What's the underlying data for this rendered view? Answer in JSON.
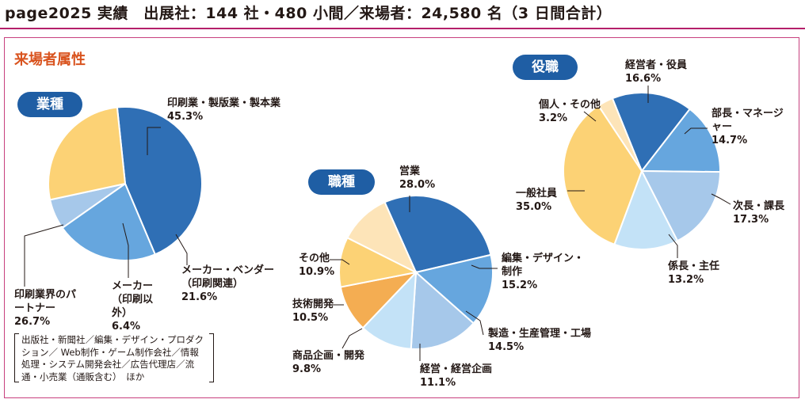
{
  "title": "page2025 実績　出展社：144 社・480 小間／来場者：24,580 名（3 日間合計）",
  "section_heading": "来場者属性",
  "note": "出版社・新聞社／編集・デザイン・プロダクション／ Web制作・ゲーム制作会社／情報処理・システム開発会社／広告代理店／流通・小売業（通販含む）　ほか",
  "colors": {
    "accent_rule": "#b4206a",
    "section_heading": "#d9531e",
    "pill": "#1f5ea4"
  },
  "chart_data": [
    {
      "type": "pie",
      "title": "業種",
      "slices": [
        {
          "label": "印刷業・製版業・製本業",
          "value": 45.3,
          "value_label": "45.3%",
          "color": "#2f6fb5"
        },
        {
          "label": "メーカー・ベンダー（印刷関連）",
          "value": 21.6,
          "value_label": "21.6%",
          "color": "#66a6de"
        },
        {
          "label": "メーカー（印刷以外）",
          "value": 6.4,
          "value_label": "6.4%",
          "color": "#a6c8ea"
        },
        {
          "label": "印刷業界のパートナー",
          "value": 26.7,
          "value_label": "26.7%",
          "color": "#fcd275"
        }
      ]
    },
    {
      "type": "pie",
      "title": "職種",
      "slices": [
        {
          "label": "営業",
          "value": 28.0,
          "value_label": "28.0%",
          "color": "#2f6fb5"
        },
        {
          "label": "編集・デザイン・制作",
          "value": 15.2,
          "value_label": "15.2%",
          "color": "#66a6de"
        },
        {
          "label": "製造・生産管理・工場",
          "value": 14.5,
          "value_label": "14.5%",
          "color": "#a6c8ea"
        },
        {
          "label": "経営・経営企画",
          "value": 11.1,
          "value_label": "11.1%",
          "color": "#c3e2f7"
        },
        {
          "label": "商品企画・開発",
          "value": 9.8,
          "value_label": "9.8%",
          "color": "#f4ad52"
        },
        {
          "label": "技術開発",
          "value": 10.5,
          "value_label": "10.5%",
          "color": "#fcd275"
        },
        {
          "label": "その他",
          "value": 10.9,
          "value_label": "10.9%",
          "color": "#fde4b8"
        }
      ]
    },
    {
      "type": "pie",
      "title": "役職",
      "slices": [
        {
          "label": "経営者・役員",
          "value": 16.6,
          "value_label": "16.6%",
          "color": "#2f6fb5"
        },
        {
          "label": "部長・マネージャー",
          "value": 14.7,
          "value_label": "14.7%",
          "color": "#66a6de"
        },
        {
          "label": "次長・課長",
          "value": 17.3,
          "value_label": "17.3%",
          "color": "#a6c8ea"
        },
        {
          "label": "係長・主任",
          "value": 13.2,
          "value_label": "13.2%",
          "color": "#c3e2f7"
        },
        {
          "label": "一般社員",
          "value": 35.0,
          "value_label": "35.0%",
          "color": "#fcd275"
        },
        {
          "label": "個人・その他",
          "value": 3.2,
          "value_label": "3.2%",
          "color": "#fde4b8"
        }
      ]
    }
  ]
}
